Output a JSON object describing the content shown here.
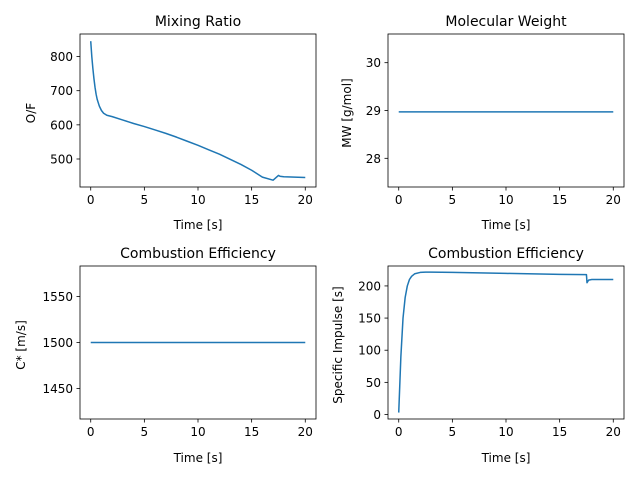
{
  "chart_data": [
    {
      "type": "line",
      "title": "Mixing Ratio",
      "xlabel": "Time [s]",
      "ylabel": "O/F",
      "xlim": [
        -1.0,
        21.0
      ],
      "ylim": [
        418,
        866
      ],
      "xticks": [
        0,
        5,
        10,
        15,
        20
      ],
      "yticks": [
        500,
        600,
        700,
        800
      ],
      "grid": false,
      "series": [
        {
          "x": [
            0.0,
            0.1,
            0.2,
            0.3,
            0.4,
            0.5,
            0.6,
            0.8,
            1.0,
            1.2,
            1.5,
            2.0,
            3.0,
            4.0,
            5.0,
            6.0,
            7.0,
            8.0,
            9.0,
            10.0,
            11.0,
            12.0,
            13.0,
            14.0,
            15.0,
            16.0,
            17.0,
            17.5,
            17.6,
            17.7,
            18.0,
            19.0,
            20.0
          ],
          "y": [
            845,
            800,
            765,
            735,
            710,
            690,
            675,
            655,
            642,
            634,
            628,
            624,
            614,
            604,
            595,
            585,
            575,
            564,
            552,
            540,
            527,
            514,
            499,
            484,
            467,
            447,
            438,
            452,
            450,
            449,
            448,
            447,
            446
          ]
        }
      ]
    },
    {
      "type": "line",
      "title": "Molecular Weight",
      "xlabel": "Time [s]",
      "ylabel": "MW [g/mol]",
      "xlim": [
        -1.0,
        21.0
      ],
      "ylim": [
        27.4,
        30.6
      ],
      "xticks": [
        0,
        5,
        10,
        15,
        20
      ],
      "yticks": [
        28,
        29,
        30
      ],
      "grid": false,
      "series": [
        {
          "x": [
            0,
            20
          ],
          "y": [
            28.97,
            28.97
          ]
        }
      ]
    },
    {
      "type": "line",
      "title": "Combustion Efficiency",
      "xlabel": "Time [s]",
      "ylabel": "C* [m/s]",
      "xlim": [
        -1.0,
        21.0
      ],
      "ylim": [
        1417,
        1583
      ],
      "xticks": [
        0,
        5,
        10,
        15,
        20
      ],
      "yticks": [
        1450,
        1500,
        1550
      ],
      "grid": false,
      "series": [
        {
          "x": [
            0,
            20
          ],
          "y": [
            1500,
            1500
          ]
        }
      ]
    },
    {
      "type": "line",
      "title": "Combustion Efficiency",
      "xlabel": "Time [s]",
      "ylabel": "Specific Impulse [s]",
      "xlim": [
        -1.0,
        21.0
      ],
      "ylim": [
        -7,
        231
      ],
      "xticks": [
        0,
        5,
        10,
        15,
        20
      ],
      "yticks": [
        0,
        50,
        100,
        150,
        200
      ],
      "grid": false,
      "series": [
        {
          "x": [
            0.0,
            0.2,
            0.4,
            0.6,
            0.8,
            1.0,
            1.2,
            1.5,
            2.0,
            2.5,
            3.0,
            5.0,
            10.0,
            15.0,
            17.5,
            17.55,
            17.7,
            18.0,
            19.0,
            20.0
          ],
          "y": [
            3,
            90,
            150,
            182,
            200,
            210,
            215,
            219,
            221,
            221.5,
            221.5,
            221,
            219.5,
            218,
            217.5,
            205,
            209,
            210,
            210,
            210
          ]
        }
      ]
    }
  ]
}
